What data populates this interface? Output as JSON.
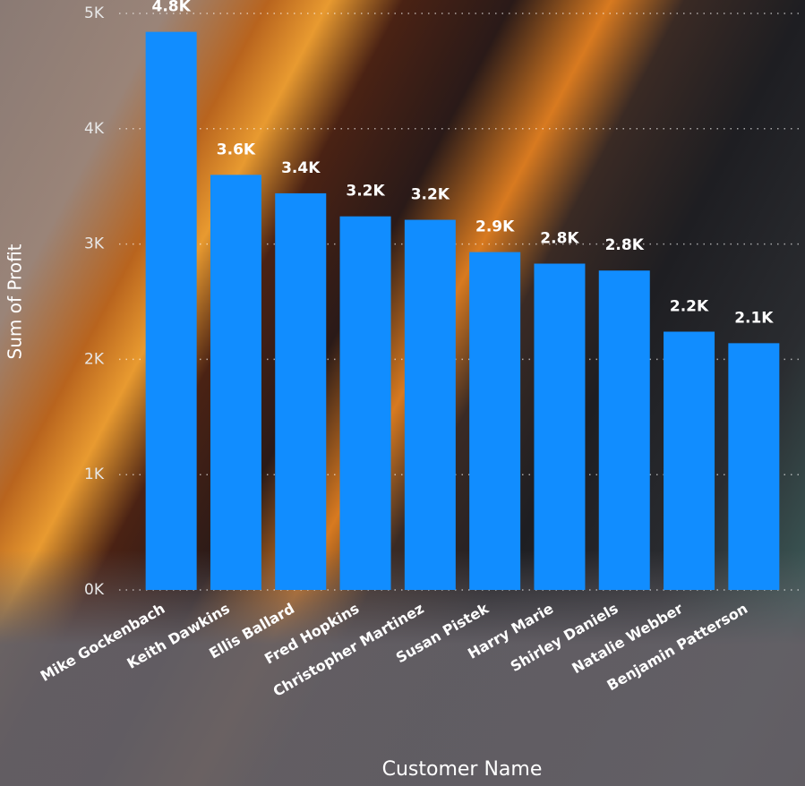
{
  "chart_data": {
    "type": "bar",
    "x_label": "Customer Name",
    "y_label": "Sum of Profit",
    "categories": [
      "Mike Gockenbach",
      "Keith Dawkins",
      "Ellis Ballard",
      "Fred Hopkins",
      "Christopher Martinez",
      "Susan Pistek",
      "Harry Marie",
      "Shirley Daniels",
      "Natalie Webber",
      "Benjamin Patterson"
    ],
    "values": [
      4840,
      3600,
      3440,
      3240,
      3210,
      2930,
      2830,
      2770,
      2240,
      2140
    ],
    "value_labels": [
      "4.8K",
      "3.6K",
      "3.4K",
      "3.2K",
      "3.2K",
      "2.9K",
      "2.8K",
      "2.8K",
      "2.2K",
      "2.1K"
    ],
    "color": "#118DFF",
    "ylim": [
      0,
      5000
    ],
    "yticks": [
      {
        "value": 0,
        "label": "0K"
      },
      {
        "value": 1000,
        "label": "1K"
      },
      {
        "value": 2000,
        "label": "2K"
      },
      {
        "value": 3000,
        "label": "3K"
      },
      {
        "value": 4000,
        "label": "4K"
      },
      {
        "value": 5000,
        "label": "5K"
      }
    ],
    "grid": true
  }
}
